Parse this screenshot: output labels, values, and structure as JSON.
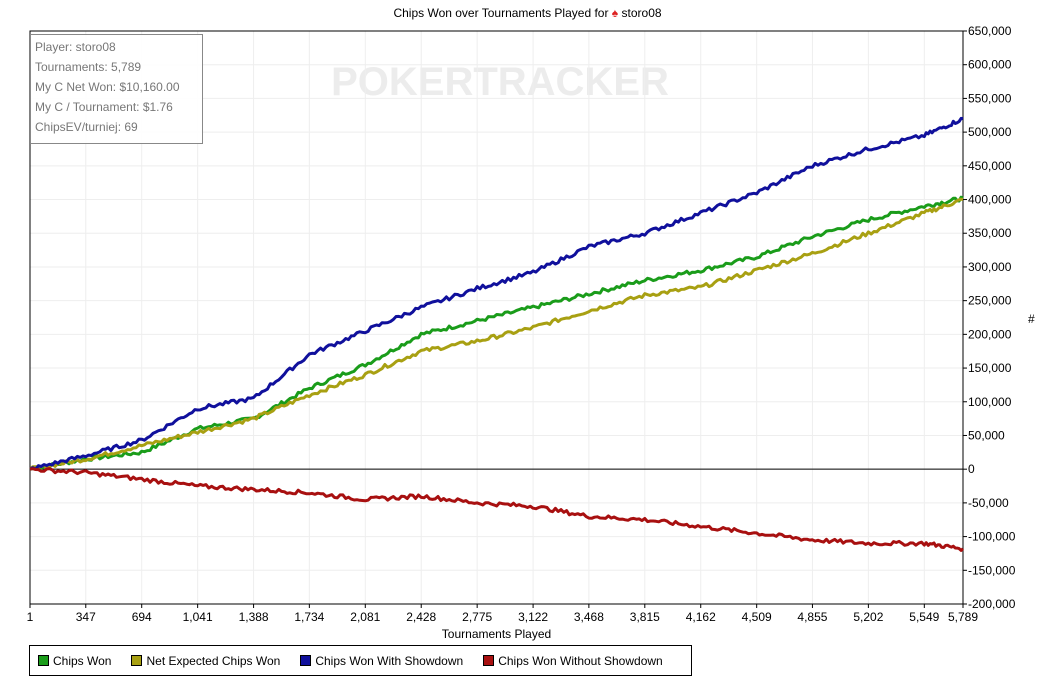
{
  "title": {
    "prefix": "Chips Won over Tournaments Played for",
    "player": "storo08",
    "icon": "spade-icon"
  },
  "info": [
    "Player: storo08",
    "Tournaments: 5,789",
    "My C Net Won: $10,160.00",
    "My C / Tournament: $1.76",
    "ChipsEV/turniej: 69"
  ],
  "watermark": "POKERTRACKER",
  "chart_data": {
    "type": "line",
    "title": "Chips Won over Tournaments Played for storo08",
    "xlabel": "Tournaments Played",
    "ylabel": "#",
    "xlim": [
      1,
      5789
    ],
    "ylim": [
      -200000,
      650000
    ],
    "grid": true,
    "legend_position": "bottom-left",
    "x_ticks": [
      "1",
      "347",
      "694",
      "1,041",
      "1,388",
      "1,734",
      "2,081",
      "2,428",
      "2,775",
      "3,122",
      "3,468",
      "3,815",
      "4,162",
      "4,509",
      "4,855",
      "5,202",
      "5,549",
      "5,789"
    ],
    "x": [
      1,
      347,
      694,
      1041,
      1388,
      1734,
      2081,
      2428,
      2775,
      3122,
      3468,
      3815,
      4162,
      4509,
      4855,
      5202,
      5549,
      5789
    ],
    "y_ticks": [
      650000,
      600000,
      550000,
      500000,
      450000,
      400000,
      350000,
      300000,
      250000,
      200000,
      150000,
      100000,
      50000,
      0,
      -50000,
      -100000,
      -150000,
      -200000
    ],
    "y_tick_labels": [
      "650,000",
      "600,000",
      "550,000",
      "500,000",
      "450,000",
      "400,000",
      "350,000",
      "300,000",
      "250,000",
      "200,000",
      "150,000",
      "100,000",
      "50,000",
      "0",
      "-50,000",
      "-100,000",
      "-150,000",
      "-200,000"
    ],
    "series": [
      {
        "name": "Chips Won",
        "color": "#1a9c1a",
        "values": [
          0,
          15000,
          25000,
          60000,
          75000,
          120000,
          155000,
          200000,
          220000,
          240000,
          260000,
          280000,
          295000,
          315000,
          345000,
          370000,
          390000,
          402000
        ]
      },
      {
        "name": "Net Expected Chips Won",
        "color": "#a8a012",
        "values": [
          0,
          15000,
          35000,
          55000,
          75000,
          110000,
          140000,
          175000,
          190000,
          210000,
          235000,
          258000,
          270000,
          295000,
          320000,
          350000,
          380000,
          400000
        ]
      },
      {
        "name": "Chips Won With Showdown",
        "color": "#10109c",
        "values": [
          0,
          20000,
          43000,
          90000,
          105000,
          170000,
          205000,
          240000,
          268000,
          292000,
          330000,
          350000,
          380000,
          410000,
          450000,
          475000,
          495000,
          520000
        ]
      },
      {
        "name": "Chips Won Without Showdown",
        "color": "#a81010",
        "values": [
          0,
          -5000,
          -15000,
          -25000,
          -30000,
          -35000,
          -45000,
          -40000,
          -50000,
          -55000,
          -70000,
          -75000,
          -85000,
          -95000,
          -105000,
          -110000,
          -110000,
          -118000
        ]
      }
    ]
  }
}
